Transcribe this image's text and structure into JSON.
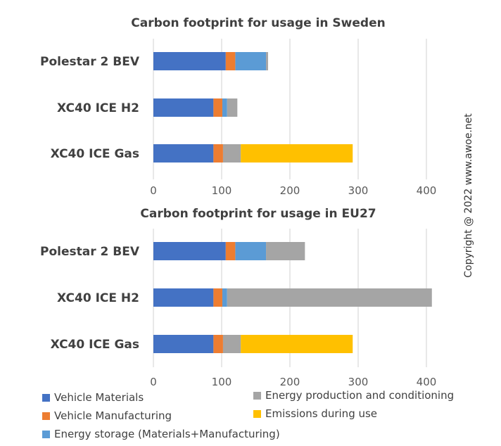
{
  "copyright": "Copyright @ 2022 www.awoe.net",
  "legend": [
    {
      "label": "Vehicle Materials",
      "color": "#4472C4"
    },
    {
      "label": "Vehicle Manufacturing",
      "color": "#ED7D31"
    },
    {
      "label": "Energy storage (Materials+Manufacturing)",
      "color": "#5B9BD5"
    },
    {
      "label": "Energy production and conditioning",
      "color": "#A5A5A5"
    },
    {
      "label": "Emissions during use",
      "color": "#FFC000"
    }
  ],
  "chart_data": [
    {
      "type": "bar",
      "orientation": "horizontal",
      "stacked": true,
      "title": "Carbon footprint for usage in Sweden",
      "categories": [
        "Polestar 2 BEV",
        "XC40 ICE H2",
        "XC40 ICE Gas"
      ],
      "xlim": [
        0,
        400
      ],
      "xticks": [
        "0",
        "100",
        "200",
        "300",
        "400"
      ],
      "grid": true,
      "series": [
        {
          "name": "Vehicle Materials",
          "color": "#4472C4",
          "values": [
            106,
            88,
            88
          ]
        },
        {
          "name": "Vehicle Manufacturing",
          "color": "#ED7D31",
          "values": [
            14,
            13,
            14
          ]
        },
        {
          "name": "Energy storage (Materials+Manufacturing)",
          "color": "#5B9BD5",
          "values": [
            45,
            7,
            0
          ]
        },
        {
          "name": "Energy production and conditioning",
          "color": "#A5A5A5",
          "values": [
            3,
            15,
            26
          ]
        },
        {
          "name": "Emissions during use",
          "color": "#FFC000",
          "values": [
            0,
            0,
            164
          ]
        }
      ]
    },
    {
      "type": "bar",
      "orientation": "horizontal",
      "stacked": true,
      "title": "Carbon footprint for usage in EU27",
      "categories": [
        "Polestar 2 BEV",
        "XC40 ICE H2",
        "XC40 ICE Gas"
      ],
      "xlim": [
        0,
        400
      ],
      "xticks": [
        "0",
        "100",
        "200",
        "300",
        "400"
      ],
      "grid": true,
      "series": [
        {
          "name": "Vehicle Materials",
          "color": "#4472C4",
          "values": [
            106,
            88,
            88
          ]
        },
        {
          "name": "Vehicle Manufacturing",
          "color": "#ED7D31",
          "values": [
            14,
            13,
            14
          ]
        },
        {
          "name": "Energy storage (Materials+Manufacturing)",
          "color": "#5B9BD5",
          "values": [
            45,
            7,
            0
          ]
        },
        {
          "name": "Energy production and conditioning",
          "color": "#A5A5A5",
          "values": [
            57,
            300,
            26
          ]
        },
        {
          "name": "Emissions during use",
          "color": "#FFC000",
          "values": [
            0,
            0,
            164
          ]
        }
      ]
    }
  ]
}
